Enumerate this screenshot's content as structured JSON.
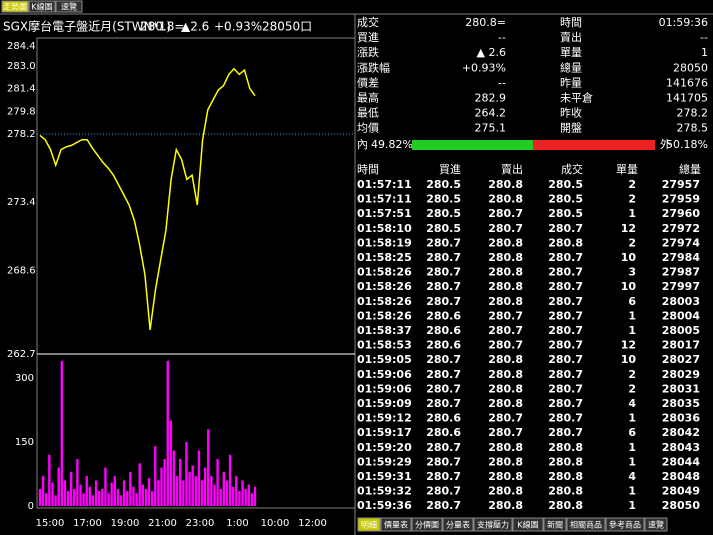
{
  "tabs": [
    "走勢圖",
    "K線圖",
    "速覽"
  ],
  "header": {
    "name": "SGX摩台電子盤近月(STWN*1)",
    "price": "280.8=",
    "change": "▲2.6",
    "percent": "+0.93%",
    "volume": "28050口"
  },
  "quote": [
    [
      "成交",
      "280.8=",
      "時間",
      "01:59:36"
    ],
    [
      "買進",
      "--",
      "賣出",
      "--"
    ],
    [
      "漲跌",
      "▲ 2.6",
      "單量",
      "1"
    ],
    [
      "漲跌幅",
      "+0.93%",
      "總量",
      "28050"
    ],
    [
      "價差",
      "--",
      "昨量",
      "141676"
    ],
    [
      "最高",
      "282.9",
      "未平倉",
      "141705"
    ],
    [
      "最低",
      "264.2",
      "昨收",
      "278.2"
    ],
    [
      "均價",
      "275.1",
      "開盤",
      "278.5"
    ]
  ],
  "ratio": {
    "inside_label": "內",
    "inside": {
      "value": 49.82,
      "label": "49.82%"
    },
    "outside_label": "外",
    "outside": {
      "value": 50.18,
      "label": "50.18%"
    }
  },
  "trades": {
    "columns": [
      "時間",
      "買進",
      "賣出",
      "成交",
      "單量",
      "總量"
    ],
    "rows": [
      [
        "01:57:11",
        "280.5",
        "280.8",
        "280.5",
        "2",
        "27957"
      ],
      [
        "01:57:11",
        "280.5",
        "280.8",
        "280.5",
        "2",
        "27959"
      ],
      [
        "01:57:51",
        "280.5",
        "280.7",
        "280.5",
        "1",
        "27960"
      ],
      [
        "01:58:10",
        "280.5",
        "280.7",
        "280.7",
        "12",
        "27972"
      ],
      [
        "01:58:19",
        "280.7",
        "280.8",
        "280.8",
        "2",
        "27974"
      ],
      [
        "01:58:25",
        "280.7",
        "280.8",
        "280.7",
        "10",
        "27984"
      ],
      [
        "01:58:26",
        "280.7",
        "280.8",
        "280.7",
        "3",
        "27987"
      ],
      [
        "01:58:26",
        "280.7",
        "280.8",
        "280.7",
        "10",
        "27997"
      ],
      [
        "01:58:26",
        "280.7",
        "280.8",
        "280.7",
        "6",
        "28003"
      ],
      [
        "01:58:26",
        "280.6",
        "280.7",
        "280.7",
        "1",
        "28004"
      ],
      [
        "01:58:37",
        "280.6",
        "280.7",
        "280.7",
        "1",
        "28005"
      ],
      [
        "01:58:53",
        "280.6",
        "280.7",
        "280.7",
        "12",
        "28017"
      ],
      [
        "01:59:05",
        "280.7",
        "280.8",
        "280.7",
        "10",
        "28027"
      ],
      [
        "01:59:06",
        "280.7",
        "280.8",
        "280.7",
        "2",
        "28029"
      ],
      [
        "01:59:06",
        "280.7",
        "280.8",
        "280.7",
        "2",
        "28031"
      ],
      [
        "01:59:09",
        "280.7",
        "280.8",
        "280.7",
        "4",
        "28035"
      ],
      [
        "01:59:12",
        "280.6",
        "280.7",
        "280.7",
        "1",
        "28036"
      ],
      [
        "01:59:17",
        "280.6",
        "280.7",
        "280.7",
        "6",
        "28042"
      ],
      [
        "01:59:20",
        "280.7",
        "280.8",
        "280.8",
        "1",
        "28043"
      ],
      [
        "01:59:29",
        "280.7",
        "280.8",
        "280.8",
        "1",
        "28044"
      ],
      [
        "01:59:31",
        "280.7",
        "280.8",
        "280.8",
        "4",
        "28048"
      ],
      [
        "01:59:32",
        "280.7",
        "280.8",
        "280.8",
        "1",
        "28049"
      ],
      [
        "01:59:36",
        "280.7",
        "280.8",
        "280.8",
        "1",
        "28050"
      ]
    ]
  },
  "price_chart": {
    "ylim": [
      262.7,
      284.4
    ],
    "yticks": [
      284.4,
      {
        "value": 283.0,
        "label": "283.0"
      },
      281.4,
      279.8,
      278.2,
      273.4,
      268.6,
      262.7
    ],
    "reference": 278.2,
    "color": "#ffff00",
    "values": [
      278.1,
      277.8,
      277.1,
      276.0,
      277.1,
      277.3,
      277.4,
      277.6,
      277.8,
      277.8,
      277.2,
      276.7,
      276.2,
      275.8,
      275.3,
      274.6,
      273.9,
      273.2,
      272.1,
      270.4,
      268.3,
      264.4,
      267.2,
      269.3,
      271.4,
      275.0,
      277.1,
      276.4,
      275.0,
      275.3,
      273.2,
      277.8,
      279.9,
      280.6,
      281.3,
      281.6,
      282.4,
      282.8,
      282.4,
      282.7,
      281.4,
      280.9
    ]
  },
  "volume_chart": {
    "ylim": [
      0,
      342
    ],
    "yticks": [
      300,
      150,
      0
    ],
    "color": "#ff00ff",
    "values": [
      40,
      70,
      30,
      120,
      55,
      25,
      90,
      340,
      60,
      35,
      80,
      40,
      110,
      50,
      30,
      70,
      45,
      25,
      60,
      35,
      40,
      90,
      30,
      55,
      70,
      40,
      25,
      60,
      35,
      80,
      45,
      30,
      100,
      50,
      40,
      65,
      35,
      140,
      60,
      90,
      110,
      340,
      200,
      130,
      70,
      110,
      60,
      150,
      80,
      95,
      70,
      130,
      60,
      90,
      180,
      70,
      50,
      110,
      40,
      80,
      60,
      120,
      45,
      70,
      35,
      60,
      40,
      50,
      30,
      45
    ]
  },
  "xticks": [
    "15:00",
    "17:00",
    "19:00",
    "21:00",
    "23:00",
    "1:00",
    "10:00",
    "12:00"
  ],
  "bottom_tabs": [
    "明細",
    "價量表",
    "分價圖",
    "分量表",
    "支撐壓力",
    "K線圖",
    "新聞",
    "相關商品",
    "參考商品",
    "速覽"
  ]
}
